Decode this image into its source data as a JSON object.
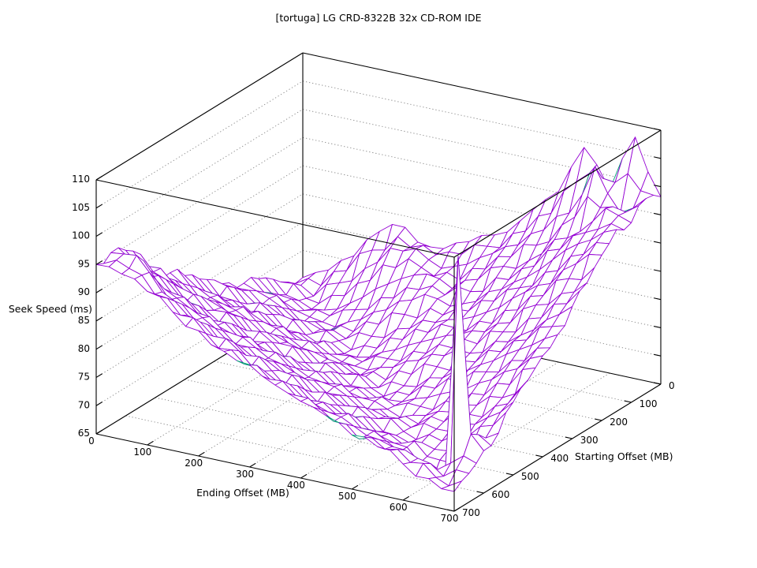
{
  "chart_data": {
    "type": "surface3d-wireframe",
    "title": "[tortuga] LG CRD-8322B 32x CD-ROM IDE",
    "xlabel": "Ending Offset (MB)",
    "ylabel": "Starting Offset (MB)",
    "zlabel": "Seek Speed (ms)",
    "x_range": [
      0,
      700
    ],
    "y_range": [
      0,
      700
    ],
    "z_range": [
      65,
      110
    ],
    "x_ticks": [
      0,
      100,
      200,
      300,
      400,
      500,
      600,
      700
    ],
    "y_ticks": [
      0,
      100,
      200,
      300,
      400,
      500,
      600,
      700
    ],
    "z_ticks": [
      65,
      70,
      75,
      80,
      85,
      90,
      95,
      100,
      105,
      110
    ],
    "grid": true,
    "legend": "none",
    "rows_are": "starting_offset_mb",
    "cols_are": "ending_offset_mb",
    "starting_offsets_mb": [
      0,
      50,
      100,
      150,
      200,
      250,
      300,
      350,
      400,
      450,
      500,
      550,
      600,
      650,
      700
    ],
    "ending_offsets_mb": [
      0,
      50,
      100,
      150,
      200,
      250,
      300,
      350,
      400,
      450,
      500,
      550,
      600,
      650,
      700
    ],
    "seek_ms": [
      [
        70.2,
        72.5,
        76.0,
        81.3,
        83.0,
        80.5,
        82.2,
        84.5,
        86.1,
        91.0,
        95.2,
        104.0,
        97.5,
        107.8,
        98.2
      ],
      [
        71.0,
        69.5,
        72.8,
        76.3,
        80.9,
        81.8,
        79.3,
        81.0,
        83.9,
        86.4,
        90.0,
        94.0,
        103.2,
        96.0,
        99.5
      ],
      [
        73.1,
        70.3,
        69.6,
        71.8,
        75.3,
        78.1,
        79.9,
        78.3,
        80.9,
        84.2,
        86.2,
        90.9,
        93.3,
        98.4,
        96.8
      ],
      [
        74.8,
        71.6,
        70.0,
        69.2,
        71.5,
        74.2,
        76.9,
        78.1,
        78.2,
        81.3,
        84.0,
        87.2,
        91.6,
        94.4,
        97.2
      ],
      [
        75.6,
        73.9,
        71.2,
        70.4,
        69.7,
        71.1,
        73.4,
        75.9,
        77.0,
        78.5,
        81.1,
        84.8,
        87.3,
        91.8,
        94.3
      ],
      [
        77.3,
        74.7,
        73.6,
        71.0,
        70.6,
        69.0,
        70.9,
        73.1,
        75.2,
        76.9,
        78.4,
        81.0,
        85.1,
        88.1,
        91.0
      ],
      [
        79.4,
        76.4,
        75.3,
        73.0,
        72.0,
        69.8,
        69.3,
        70.8,
        73.0,
        74.8,
        76.2,
        79.3,
        81.4,
        85.1,
        88.4
      ],
      [
        81.2,
        78.4,
        77.1,
        75.4,
        72.9,
        71.9,
        70.4,
        68.8,
        70.1,
        72.5,
        74.7,
        76.8,
        79.6,
        82.2,
        85.0
      ],
      [
        83.4,
        80.5,
        79.2,
        76.3,
        75.5,
        72.8,
        72.0,
        70.3,
        69.2,
        70.4,
        72.2,
        74.1,
        76.7,
        79.6,
        82.9
      ],
      [
        85.5,
        82.2,
        81.3,
        78.2,
        77.1,
        74.6,
        73.7,
        71.2,
        70.6,
        68.7,
        70.0,
        71.6,
        73.8,
        76.1,
        80.2
      ],
      [
        86.6,
        85.4,
        82.4,
        81.0,
        78.3,
        77.2,
        74.5,
        73.8,
        71.0,
        70.4,
        69.5,
        70.2,
        72.1,
        74.2,
        77.9
      ],
      [
        92.0,
        88.5,
        85.2,
        82.3,
        81.2,
        78.5,
        77.0,
        74.4,
        73.0,
        71.8,
        69.7,
        69.4,
        68.9,
        71.3,
        74.0
      ],
      [
        94.3,
        90.6,
        87.8,
        85.3,
        82.1,
        80.2,
        78.9,
        76.5,
        74.8,
        73.5,
        71.1,
        70.2,
        65.5,
        106.0,
        72.5
      ],
      [
        95.5,
        96.0,
        90.5,
        87.3,
        84.6,
        83.0,
        80.4,
        79.0,
        76.4,
        75.2,
        72.9,
        71.9,
        70.8,
        68.6,
        70.1
      ],
      [
        95.0,
        94.3,
        92.2,
        89.5,
        87.2,
        84.5,
        83.1,
        80.5,
        78.6,
        77.0,
        74.6,
        73.5,
        71.4,
        69.8,
        68.5
      ]
    ],
    "colors": {
      "surface_top": "#9400d3",
      "surface_bottom": "#009e73",
      "grid": "#8c8c8c",
      "border": "#000000",
      "background": "#ffffff",
      "text": "#000000"
    }
  }
}
